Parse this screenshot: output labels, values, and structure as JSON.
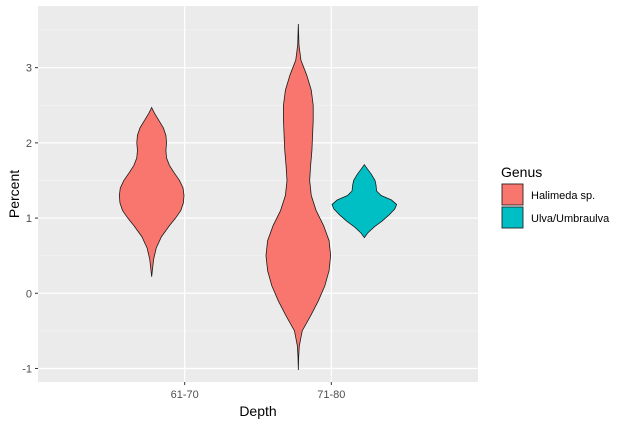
{
  "chart_data": {
    "type": "violin",
    "title": "",
    "xlabel": "Depth",
    "ylabel": "Percent",
    "ylim": [
      -1.18,
      3.82
    ],
    "y_ticks": [
      -1,
      0,
      1,
      2,
      3
    ],
    "categories": [
      "61-70",
      "71-80"
    ],
    "grid": true,
    "legend_placement": "right",
    "legend": {
      "title": "Genus",
      "entries": [
        {
          "name": "Halimeda sp.",
          "color": "#F8766D"
        },
        {
          "name": "Ulva/Umbraulva",
          "color": "#00BFC4"
        }
      ]
    },
    "violins": [
      {
        "category": "61-70",
        "genus": "Halimeda sp.",
        "color": "#F8766D",
        "profile": [
          [
            0.22,
            0.0
          ],
          [
            0.3,
            0.02
          ],
          [
            0.45,
            0.06
          ],
          [
            0.6,
            0.14
          ],
          [
            0.75,
            0.3
          ],
          [
            0.9,
            0.55
          ],
          [
            1.0,
            0.74
          ],
          [
            1.1,
            0.9
          ],
          [
            1.2,
            0.98
          ],
          [
            1.3,
            1.0
          ],
          [
            1.4,
            0.97
          ],
          [
            1.5,
            0.86
          ],
          [
            1.6,
            0.7
          ],
          [
            1.7,
            0.55
          ],
          [
            1.8,
            0.46
          ],
          [
            1.9,
            0.44
          ],
          [
            2.0,
            0.46
          ],
          [
            2.1,
            0.44
          ],
          [
            2.2,
            0.36
          ],
          [
            2.3,
            0.22
          ],
          [
            2.4,
            0.08
          ],
          [
            2.47,
            0.0
          ]
        ]
      },
      {
        "category": "71-80",
        "genus": "Halimeda sp.",
        "color": "#F8766D",
        "profile": [
          [
            -1.02,
            0.0
          ],
          [
            -0.85,
            0.01
          ],
          [
            -0.7,
            0.03
          ],
          [
            -0.5,
            0.12
          ],
          [
            -0.3,
            0.38
          ],
          [
            -0.1,
            0.62
          ],
          [
            0.1,
            0.82
          ],
          [
            0.3,
            0.95
          ],
          [
            0.5,
            1.0
          ],
          [
            0.7,
            0.95
          ],
          [
            0.9,
            0.78
          ],
          [
            1.1,
            0.55
          ],
          [
            1.3,
            0.4
          ],
          [
            1.5,
            0.35
          ],
          [
            1.7,
            0.38
          ],
          [
            1.9,
            0.42
          ],
          [
            2.1,
            0.44
          ],
          [
            2.3,
            0.46
          ],
          [
            2.5,
            0.46
          ],
          [
            2.7,
            0.4
          ],
          [
            2.9,
            0.26
          ],
          [
            3.1,
            0.08
          ],
          [
            3.3,
            0.02
          ],
          [
            3.58,
            0.0
          ]
        ]
      },
      {
        "category": "71-80",
        "genus": "Ulva/Umbraulva",
        "color": "#00BFC4",
        "profile": [
          [
            0.74,
            0.0
          ],
          [
            0.8,
            0.1
          ],
          [
            0.88,
            0.3
          ],
          [
            0.96,
            0.55
          ],
          [
            1.04,
            0.76
          ],
          [
            1.12,
            0.94
          ],
          [
            1.18,
            1.0
          ],
          [
            1.24,
            0.84
          ],
          [
            1.3,
            0.52
          ],
          [
            1.36,
            0.38
          ],
          [
            1.44,
            0.36
          ],
          [
            1.5,
            0.33
          ],
          [
            1.58,
            0.22
          ],
          [
            1.65,
            0.1
          ],
          [
            1.71,
            0.0
          ]
        ]
      }
    ]
  }
}
